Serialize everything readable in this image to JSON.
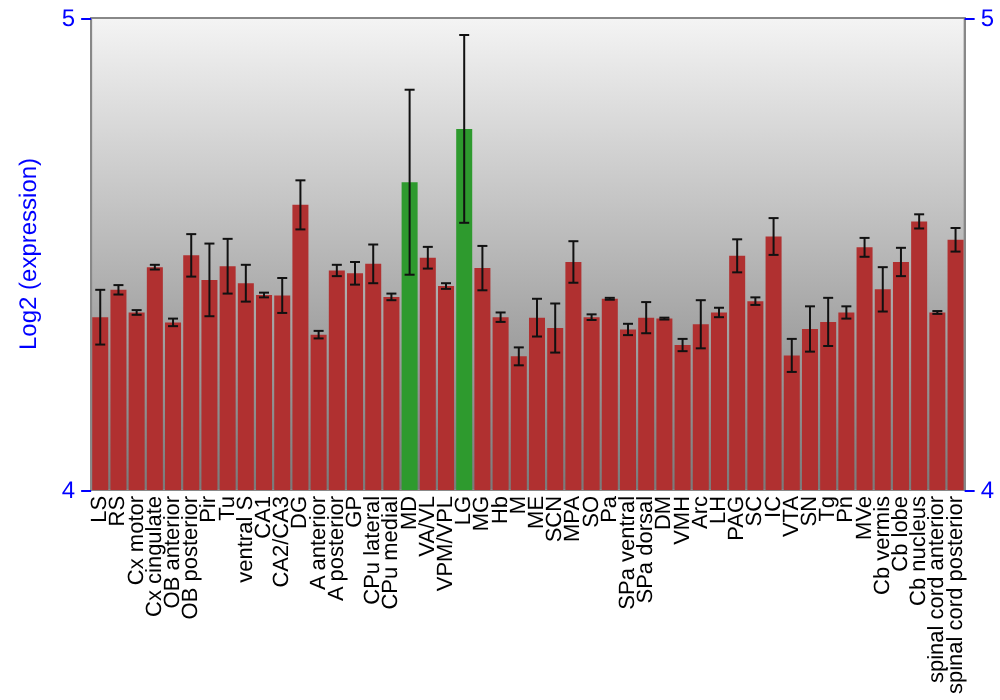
{
  "chart_data": {
    "type": "bar",
    "ylabel": "Log2 (expression)",
    "categories": [
      "LS",
      "RS",
      "Cx motor",
      "Cx cingulate",
      "OB anterior",
      "OB posterior",
      "Pir",
      "Tu",
      "ventral S",
      "CA1",
      "CA2/CA3",
      "DG",
      "A anterior",
      "A posterior",
      "GP",
      "CPu lateral",
      "CPu medial",
      "MD",
      "VA/VL",
      "VPM/VPL",
      "LG",
      "MG",
      "Hb",
      "M",
      "ME",
      "SCN",
      "MPA",
      "SO",
      "Pa",
      "SPa ventral",
      "SPa dorsal",
      "DM",
      "VMH",
      "Arc",
      "LH",
      "PAG",
      "SC",
      "IC",
      "VTA",
      "SN",
      "Tg",
      "Pn",
      "MVe",
      "Cb vermis",
      "Cb lobe",
      "Cb nucleus",
      "spinal cord anterior",
      "spinal cord posterior"
    ],
    "values": [
      4.366,
      4.424,
      4.376,
      4.472,
      4.355,
      4.497,
      4.445,
      4.474,
      4.438,
      4.413,
      4.412,
      4.604,
      4.329,
      4.465,
      4.459,
      4.479,
      4.409,
      4.652,
      4.492,
      4.432,
      4.765,
      4.47,
      4.366,
      4.283,
      4.365,
      4.343,
      4.483,
      4.366,
      4.405,
      4.34,
      4.365,
      4.363,
      4.307,
      4.351,
      4.376,
      4.496,
      4.4,
      4.537,
      4.285,
      4.341,
      4.356,
      4.376,
      4.514,
      4.425,
      4.483,
      4.569,
      4.376,
      4.53
    ],
    "errors": [
      0.058,
      0.01,
      0.005,
      0.005,
      0.008,
      0.045,
      0.077,
      0.058,
      0.039,
      0.005,
      0.037,
      0.052,
      0.008,
      0.012,
      0.024,
      0.041,
      0.007,
      0.196,
      0.023,
      0.006,
      0.199,
      0.047,
      0.01,
      0.019,
      0.04,
      0.052,
      0.044,
      0.006,
      0.002,
      0.012,
      0.033,
      0.002,
      0.013,
      0.051,
      0.01,
      0.035,
      0.008,
      0.039,
      0.035,
      0.048,
      0.051,
      0.013,
      0.02,
      0.047,
      0.03,
      0.015,
      0.003,
      0.025
    ],
    "colors": [
      "#b03030",
      "#b03030",
      "#b03030",
      "#b03030",
      "#b03030",
      "#b03030",
      "#b03030",
      "#b03030",
      "#b03030",
      "#b03030",
      "#b03030",
      "#b03030",
      "#b03030",
      "#b03030",
      "#b03030",
      "#b03030",
      "#b03030",
      "#2e9a2e",
      "#b03030",
      "#b03030",
      "#2e9a2e",
      "#b03030",
      "#b03030",
      "#b03030",
      "#b03030",
      "#b03030",
      "#b03030",
      "#b03030",
      "#b03030",
      "#b03030",
      "#b03030",
      "#b03030",
      "#b03030",
      "#b03030",
      "#b03030",
      "#b03030",
      "#b03030",
      "#b03030",
      "#b03030",
      "#b03030",
      "#b03030",
      "#b03030",
      "#b03030",
      "#b03030",
      "#b03030",
      "#b03030",
      "#b03030",
      "#b03030"
    ],
    "ylim": [
      4,
      5
    ],
    "yticks": [
      4,
      5
    ],
    "y2lim": [
      4,
      5
    ],
    "y2ticks": [
      4,
      5
    ],
    "grid": false
  }
}
